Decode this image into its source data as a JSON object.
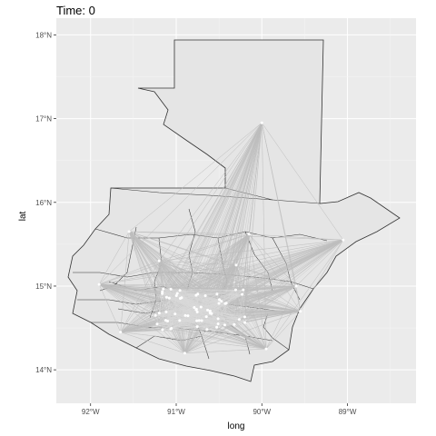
{
  "title": "Time: 0",
  "x_axis": {
    "label": "long",
    "ticks": [
      "92°W",
      "91°W",
      "90°W",
      "89°W"
    ],
    "tick_values": [
      -92,
      -91,
      -90,
      -89
    ],
    "range": [
      -92.4,
      -88.2
    ]
  },
  "y_axis": {
    "label": "lat",
    "ticks": [
      "14°N",
      "15°N",
      "16°N",
      "17°N",
      "18°N"
    ],
    "tick_values": [
      14,
      15,
      16,
      17,
      18
    ],
    "range": [
      13.6,
      18.2
    ]
  },
  "colors": {
    "panel": "#ebebeb",
    "grid": "#ffffff",
    "land": "#e5e5e5",
    "border": "#333333",
    "flow": "#c7c7c7",
    "node": "#ffffff"
  },
  "chart_data": {
    "type": "map",
    "region": "Guatemala",
    "grid": true,
    "hubs": [
      {
        "lon": -90.0,
        "lat": 16.95
      },
      {
        "lon": -91.55,
        "lat": 15.65
      },
      {
        "lon": -90.15,
        "lat": 15.62
      },
      {
        "lon": -89.05,
        "lat": 15.55
      },
      {
        "lon": -91.9,
        "lat": 15.02
      },
      {
        "lon": -89.6,
        "lat": 15.0
      },
      {
        "lon": -91.65,
        "lat": 14.45
      },
      {
        "lon": -90.9,
        "lat": 14.2
      },
      {
        "lon": -89.95,
        "lat": 14.25
      },
      {
        "lon": -89.55,
        "lat": 14.7
      },
      {
        "lon": -90.3,
        "lat": 15.25
      },
      {
        "lon": -91.2,
        "lat": 15.3
      }
    ],
    "cluster": {
      "center": [
        -90.7,
        14.72
      ],
      "spread": [
        0.55,
        0.25
      ],
      "count": 60
    }
  }
}
